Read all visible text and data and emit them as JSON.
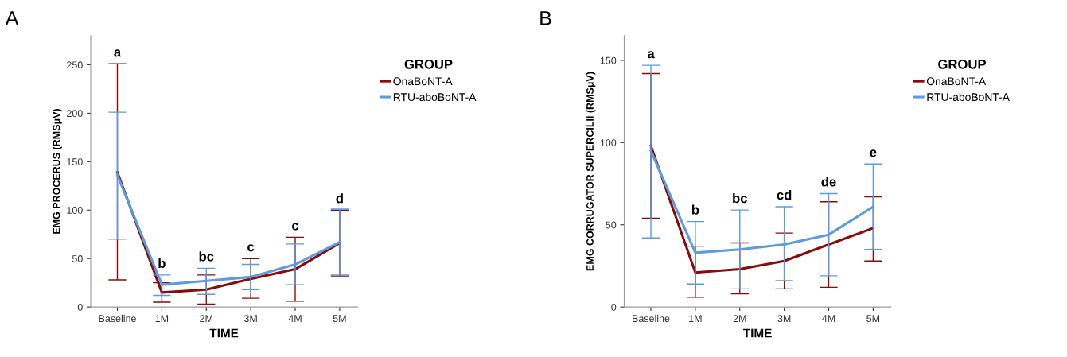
{
  "chart_data": [
    {
      "type": "line",
      "title": "A",
      "xlabel": "TIME",
      "ylabel": "EMG PROCERUS (RMSμV)",
      "legend_title": "GROUP",
      "legend": "right",
      "grid": false,
      "marker": "none",
      "line_style": "solid",
      "categories": [
        "Baseline",
        "1M",
        "2M",
        "3M",
        "4M",
        "5M"
      ],
      "ylim": [
        0,
        280
      ],
      "yticks": [
        0,
        50,
        100,
        150,
        200,
        250
      ],
      "series": [
        {
          "name": "OnaBoNT-A",
          "color": "#8b0a0a",
          "values": [
            139,
            15,
            18,
            29,
            39,
            66
          ],
          "errors": [
            [
              28,
              251
            ],
            [
              5,
              25
            ],
            [
              3,
              33
            ],
            [
              9,
              50
            ],
            [
              6,
              72
            ],
            [
              32,
              100
            ]
          ]
        },
        {
          "name": "RTU-aboBoNT-A",
          "color": "#5b9bdf",
          "values": [
            136,
            23,
            27,
            31,
            44,
            67
          ],
          "errors": [
            [
              70,
              201
            ],
            [
              12,
              33
            ],
            [
              13,
              40
            ],
            [
              18,
              44
            ],
            [
              23,
              65
            ],
            [
              33,
              101
            ]
          ]
        }
      ],
      "annotations": [
        {
          "text": "a",
          "x": "Baseline",
          "y": 251
        },
        {
          "text": "b",
          "x": "1M",
          "y": 33
        },
        {
          "text": "bc",
          "x": "2M",
          "y": 40
        },
        {
          "text": "c",
          "x": "3M",
          "y": 50
        },
        {
          "text": "c",
          "x": "4M",
          "y": 72
        },
        {
          "text": "d",
          "x": "5M",
          "y": 100
        }
      ]
    },
    {
      "type": "line",
      "title": "B",
      "xlabel": "TIME",
      "ylabel": "EMG CORRUGATOR SUPERCILII (RMSμV)",
      "legend_title": "GROUP",
      "legend": "right",
      "grid": false,
      "marker": "none",
      "line_style": "solid",
      "categories": [
        "Baseline",
        "1M",
        "2M",
        "3M",
        "4M",
        "5M"
      ],
      "ylim": [
        0,
        165
      ],
      "yticks": [
        0,
        50,
        100,
        150
      ],
      "series": [
        {
          "name": "OnaBoNT-A",
          "color": "#8b0a0a",
          "values": [
            98,
            21,
            23,
            28,
            38,
            48
          ],
          "errors": [
            [
              54,
              142
            ],
            [
              6,
              37
            ],
            [
              8,
              39
            ],
            [
              11,
              45
            ],
            [
              12,
              64
            ],
            [
              28,
              67
            ]
          ]
        },
        {
          "name": "RTU-aboBoNT-A",
          "color": "#5b9bdf",
          "values": [
            95,
            33,
            35,
            38,
            44,
            61
          ],
          "errors": [
            [
              42,
              147
            ],
            [
              14,
              52
            ],
            [
              11,
              59
            ],
            [
              16,
              61
            ],
            [
              19,
              69
            ],
            [
              35,
              87
            ]
          ]
        }
      ],
      "annotations": [
        {
          "text": "a",
          "x": "Baseline",
          "y": 147
        },
        {
          "text": "b",
          "x": "1M",
          "y": 52
        },
        {
          "text": "bc",
          "x": "2M",
          "y": 59
        },
        {
          "text": "cd",
          "x": "3M",
          "y": 61
        },
        {
          "text": "de",
          "x": "4M",
          "y": 69
        },
        {
          "text": "e",
          "x": "5M",
          "y": 87
        }
      ]
    }
  ]
}
